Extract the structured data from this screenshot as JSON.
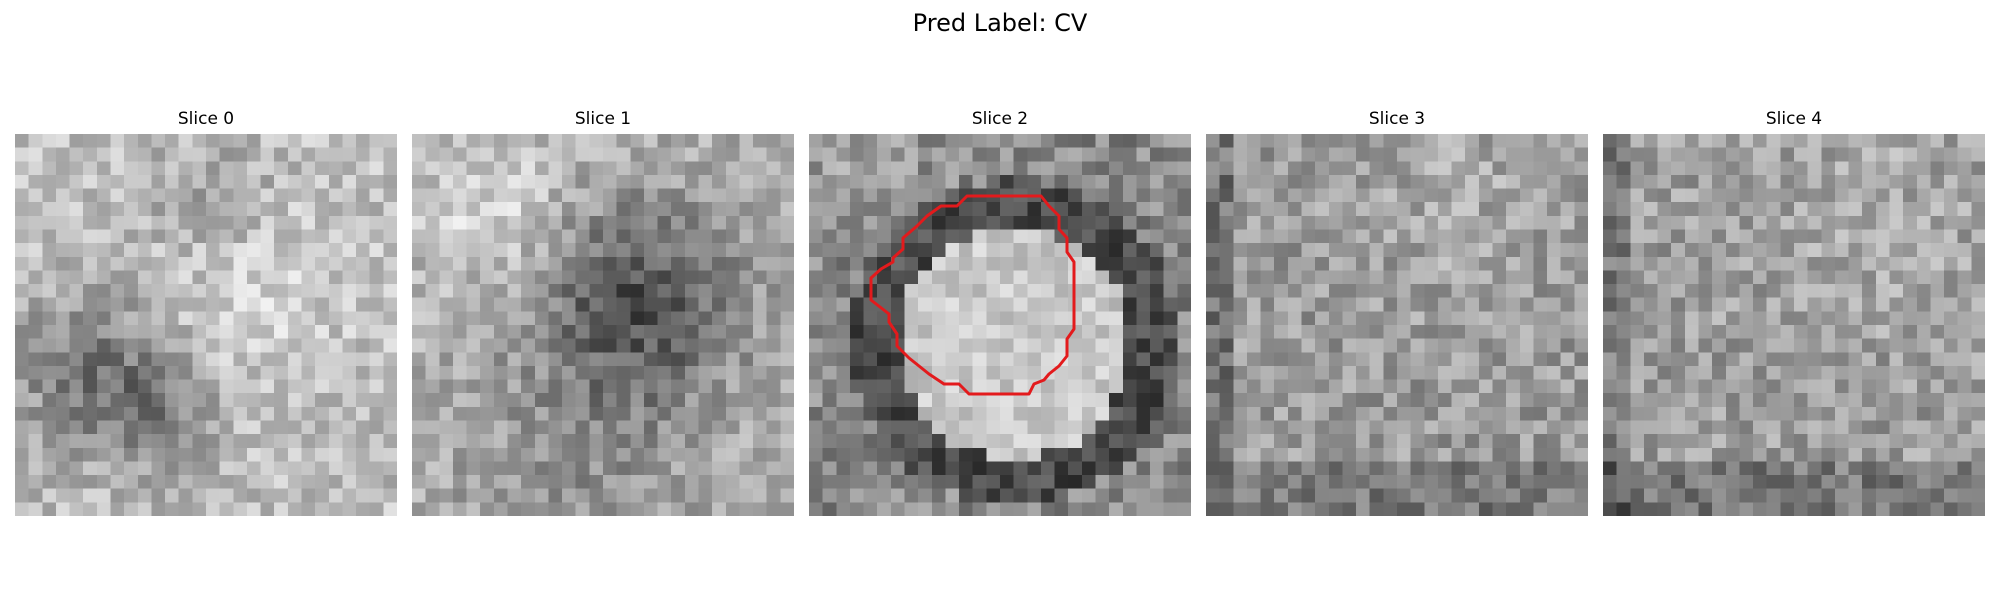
{
  "figure": {
    "title": "Pred Label: CV"
  },
  "panels": [
    {
      "title": "Slice 0",
      "type": "noisy grayscale patch"
    },
    {
      "title": "Slice 1",
      "type": "noisy grayscale patch with dark blob"
    },
    {
      "title": "Slice 2",
      "type": "bright circular blob with red outline"
    },
    {
      "title": "Slice 3",
      "type": "noisy grayscale patch"
    },
    {
      "title": "Slice 4",
      "type": "noisy grayscale patch"
    }
  ],
  "style": {
    "outline_color": "#e31a1c",
    "colormap": "gray"
  }
}
